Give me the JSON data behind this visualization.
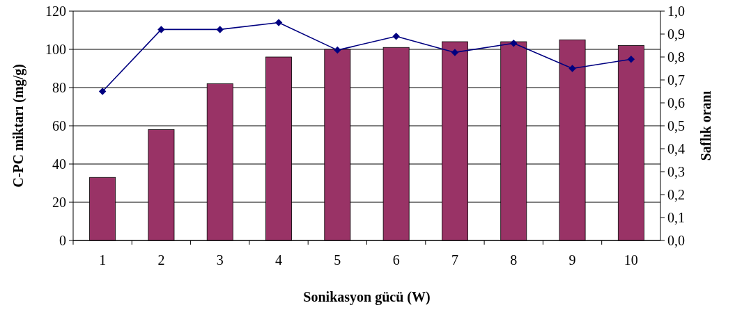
{
  "chart_data": {
    "type": "bar",
    "categories": [
      "1",
      "2",
      "3",
      "4",
      "5",
      "6",
      "7",
      "8",
      "9",
      "10"
    ],
    "xlabel": "Sonikasyon gücü (W)",
    "ylabel": "C-PC miktarı (mg/g)",
    "y2label": "Saflık oranı",
    "series": [
      {
        "color": "#993366",
        "values": [
          33,
          58,
          82,
          96,
          100,
          101,
          104,
          104,
          105,
          102
        ]
      },
      {
        "type": "line",
        "axis": "y2",
        "color": "#000080",
        "marker": "diamond",
        "values": [
          0.65,
          0.92,
          0.92,
          0.95,
          0.83,
          0.89,
          0.82,
          0.86,
          0.75,
          0.79
        ]
      }
    ],
    "ylim": [
      0,
      120
    ],
    "yticks": [
      0,
      20,
      40,
      60,
      80,
      100,
      120
    ],
    "y2lim": [
      0,
      1
    ],
    "y2ticks": [
      {
        "value": 0,
        "label": "0,0"
      },
      {
        "value": 0.1,
        "label": "0,1"
      },
      {
        "value": 0.2,
        "label": "0,2"
      },
      {
        "value": 0.3,
        "label": "0,3"
      },
      {
        "value": 0.4,
        "label": "0,4"
      },
      {
        "value": 0.5,
        "label": "0,5"
      },
      {
        "value": 0.6,
        "label": "0,6"
      },
      {
        "value": 0.7,
        "label": "0,7"
      },
      {
        "value": 0.8,
        "label": "0,8"
      },
      {
        "value": 0.9,
        "label": "0,9"
      },
      {
        "value": 1,
        "label": "1,0"
      }
    ],
    "grid": "y"
  }
}
